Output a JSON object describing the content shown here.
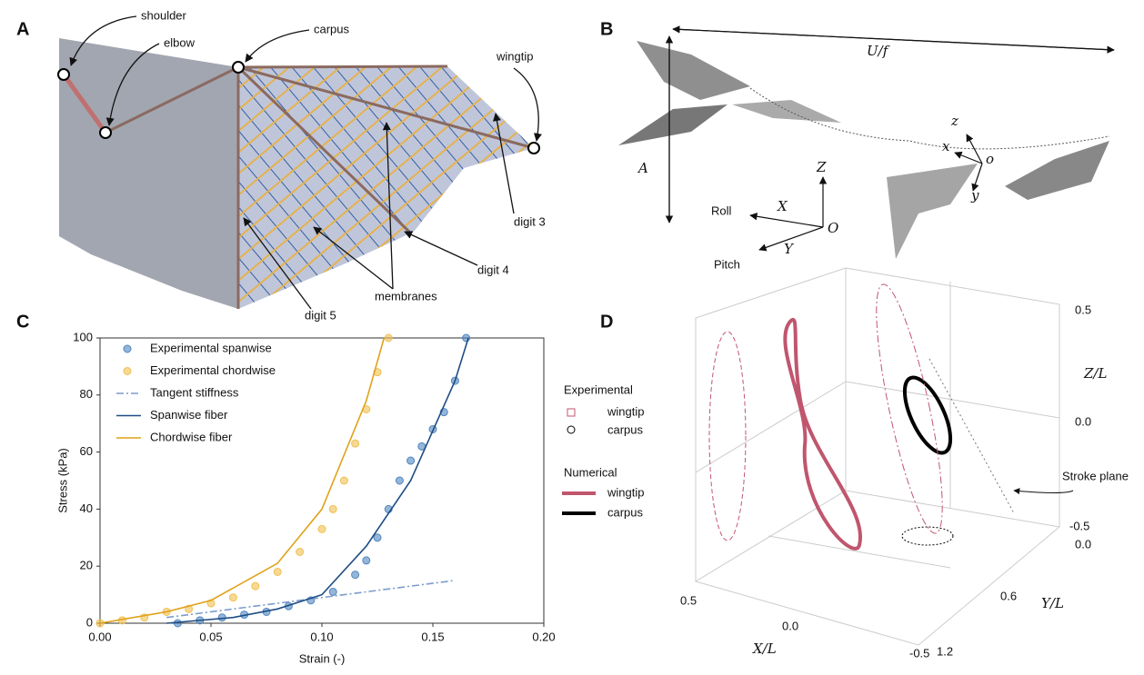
{
  "panels": {
    "A": "A",
    "B": "B",
    "C": "C",
    "D": "D"
  },
  "panel_a": {
    "labels": [
      "shoulder",
      "elbow",
      "carpus",
      "wingtip",
      "digit 3",
      "digit 4",
      "digit 5",
      "membranes"
    ]
  },
  "panel_b": {
    "period": "U/f",
    "amplitude": "A",
    "roll": "Roll",
    "pitch": "Pitch",
    "global_axes": [
      "X",
      "Y",
      "Z",
      "O"
    ],
    "body_axes": [
      "x",
      "y",
      "z",
      "o"
    ]
  },
  "panel_d": {
    "legend": {
      "experimental": "Experimental",
      "numerical": "Numerical",
      "wingtip": "wingtip",
      "carpus": "carpus"
    },
    "z_ticks": [
      "0.5",
      "0.0",
      "-0.5"
    ],
    "y_ticks": [
      "0.0",
      "0.6",
      "1.2"
    ],
    "x_ticks": [
      "0.5",
      "0.0",
      "-0.5"
    ],
    "z_label": "Z/L",
    "y_label": "Y/L",
    "x_label": "X/L",
    "stroke_plane": "Stroke plane"
  },
  "chart_data": {
    "type": "line",
    "xlabel": "Strain (-)",
    "ylabel": "Stress (kPa)",
    "xlim": [
      0,
      0.2
    ],
    "ylim": [
      0,
      100
    ],
    "xticks": [
      {
        "value": 0,
        "label": "0.00"
      },
      {
        "value": 0.05,
        "label": "0.05"
      },
      {
        "value": 0.1,
        "label": "0.10"
      },
      {
        "value": 0.15,
        "label": "0.15"
      },
      {
        "value": 0.2,
        "label": "0.20"
      }
    ],
    "yticks": [
      0,
      20,
      40,
      60,
      80,
      100
    ],
    "series": [
      {
        "name": "Experimental spanwise",
        "kind": "scatter",
        "color": "#4f86c0",
        "x": [
          0.035,
          0.045,
          0.055,
          0.065,
          0.075,
          0.085,
          0.095,
          0.105,
          0.115,
          0.12,
          0.125,
          0.13,
          0.135,
          0.14,
          0.145,
          0.15,
          0.155,
          0.16,
          0.165
        ],
        "values": [
          0,
          1,
          2,
          3,
          4,
          6,
          8,
          11,
          17,
          22,
          30,
          40,
          50,
          57,
          62,
          68,
          74,
          85,
          100
        ]
      },
      {
        "name": "Experimental chordwise",
        "kind": "scatter",
        "color": "#f0c050",
        "x": [
          0,
          0.01,
          0.02,
          0.03,
          0.04,
          0.05,
          0.06,
          0.07,
          0.08,
          0.09,
          0.1,
          0.105,
          0.11,
          0.115,
          0.12,
          0.125,
          0.13
        ],
        "values": [
          0,
          1,
          2,
          4,
          5,
          7,
          9,
          13,
          18,
          25,
          33,
          40,
          50,
          63,
          75,
          88,
          100
        ]
      },
      {
        "name": "Tangent stiffness",
        "kind": "dashdot",
        "color": "#7d9ccb",
        "x": [
          0.03,
          0.16
        ],
        "values": [
          2,
          15
        ]
      },
      {
        "name": "Spanwise fiber",
        "kind": "line",
        "color": "#1f4e85",
        "x": [
          0.03,
          0.06,
          0.08,
          0.1,
          0.12,
          0.14,
          0.16,
          0.166
        ],
        "values": [
          0,
          2,
          5,
          10,
          27,
          50,
          85,
          100
        ]
      },
      {
        "name": "Chordwise fiber",
        "kind": "line",
        "color": "#e0a21a",
        "x": [
          0,
          0.03,
          0.05,
          0.08,
          0.1,
          0.12,
          0.128
        ],
        "values": [
          0,
          4,
          8,
          21,
          40,
          78,
          100
        ]
      }
    ]
  }
}
